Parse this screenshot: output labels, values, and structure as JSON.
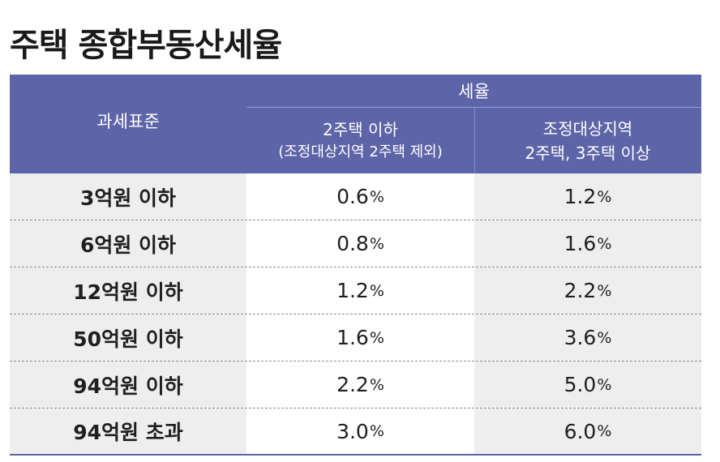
{
  "title": "주택 종합부동산세율",
  "header": {
    "criteria": "과세표준",
    "rate": "세율",
    "col1_line1": "2주택 이하",
    "col1_line2": "(조정대상지역 2주택 제외)",
    "col2_line1": "조정대상지역",
    "col2_line2": "2주택, 3주택 이상"
  },
  "rows": [
    {
      "criteria": "3억원 이하",
      "col1": "0.6",
      "col2": "1.2"
    },
    {
      "criteria": "6억원 이하",
      "col1": "0.8",
      "col2": "1.6"
    },
    {
      "criteria": "12억원 이하",
      "col1": "1.2",
      "col2": "2.2"
    },
    {
      "criteria": "50억원 이하",
      "col1": "1.6",
      "col2": "3.6"
    },
    {
      "criteria": "94억원 이하",
      "col1": "2.2",
      "col2": "5.0"
    },
    {
      "criteria": "94억원 초과",
      "col1": "3.0",
      "col2": "6.0"
    }
  ],
  "unit": "%",
  "colors": {
    "header_bg": "#5d64a8",
    "shaded_cell": "#eeeeee"
  }
}
